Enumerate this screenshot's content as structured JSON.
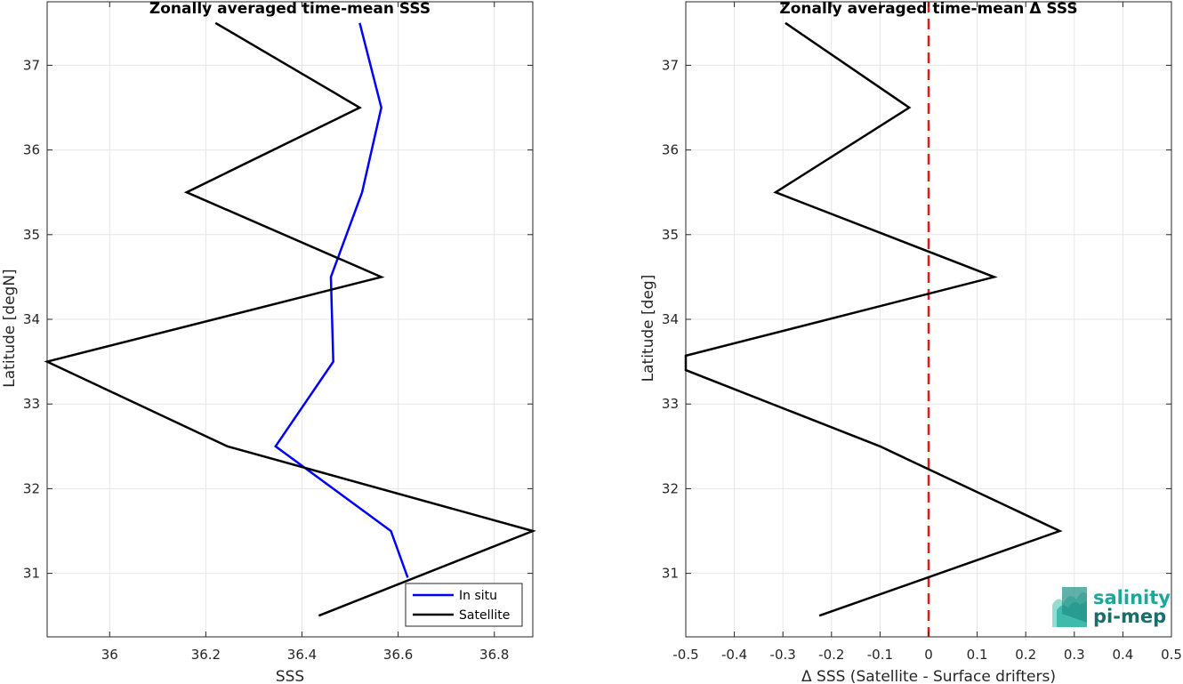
{
  "chart_data": [
    {
      "type": "line",
      "title": "Zonally averaged time-mean SSS",
      "xlabel": "SSS",
      "ylabel": "Latitude [degN]",
      "xlim": [
        35.87,
        36.88
      ],
      "ylim": [
        30.25,
        37.75
      ],
      "xticks": [
        "36",
        "36.2",
        "36.4",
        "36.6",
        "36.8"
      ],
      "yticks": [
        "31",
        "32",
        "33",
        "34",
        "35",
        "36",
        "37"
      ],
      "grid": true,
      "legend_position": "bottom-right",
      "series": [
        {
          "name": "In situ",
          "color": "#0000ff",
          "points": [
            {
              "x": 36.52,
              "y": 37.5
            },
            {
              "x": 36.565,
              "y": 36.5
            },
            {
              "x": 36.525,
              "y": 35.5
            },
            {
              "x": 36.46,
              "y": 34.5
            },
            {
              "x": 36.465,
              "y": 33.5
            },
            {
              "x": 36.345,
              "y": 32.5
            },
            {
              "x": 36.585,
              "y": 31.5
            },
            {
              "x": 36.62,
              "y": 30.95
            }
          ]
        },
        {
          "name": "Satellite",
          "color": "#000000",
          "points": [
            {
              "x": 36.22,
              "y": 37.5
            },
            {
              "x": 36.52,
              "y": 36.5
            },
            {
              "x": 36.16,
              "y": 35.5
            },
            {
              "x": 36.565,
              "y": 34.5
            },
            {
              "x": 35.87,
              "y": 33.5
            },
            {
              "x": 36.245,
              "y": 32.5
            },
            {
              "x": 36.88,
              "y": 31.5
            },
            {
              "x": 36.435,
              "y": 30.5
            }
          ]
        }
      ]
    },
    {
      "type": "line",
      "title": "Zonally averaged time-mean Δ SSS",
      "xlabel": "Δ SSS (Satellite - Surface drifters)",
      "ylabel": "Latitude [deg]",
      "xlim": [
        -0.5,
        0.5
      ],
      "ylim": [
        30.25,
        37.75
      ],
      "xticks": [
        "-0.5",
        "-0.4",
        "-0.3",
        "-0.2",
        "-0.1",
        "0",
        "0.1",
        "0.2",
        "0.3",
        "0.4",
        "0.5"
      ],
      "yticks": [
        "31",
        "32",
        "33",
        "34",
        "35",
        "36",
        "37"
      ],
      "grid": true,
      "reference_line": {
        "x": 0,
        "color": "#e01b1b",
        "style": "dashed"
      },
      "series": [
        {
          "color": "#000000",
          "points": [
            {
              "x": -0.295,
              "y": 37.5
            },
            {
              "x": -0.04,
              "y": 36.5
            },
            {
              "x": -0.315,
              "y": 35.5
            },
            {
              "x": 0.135,
              "y": 34.5
            },
            {
              "x": -0.5,
              "y": 33.57
            },
            {
              "x": -0.5,
              "y": 33.4
            },
            {
              "x": -0.1,
              "y": 32.5
            },
            {
              "x": 0.27,
              "y": 31.5
            },
            {
              "x": -0.225,
              "y": 30.5
            }
          ]
        }
      ]
    }
  ],
  "logo": {
    "line1": "salinity",
    "line2": "pi-mep",
    "color1": "#1aa89a",
    "color2": "#1a6e6a"
  }
}
